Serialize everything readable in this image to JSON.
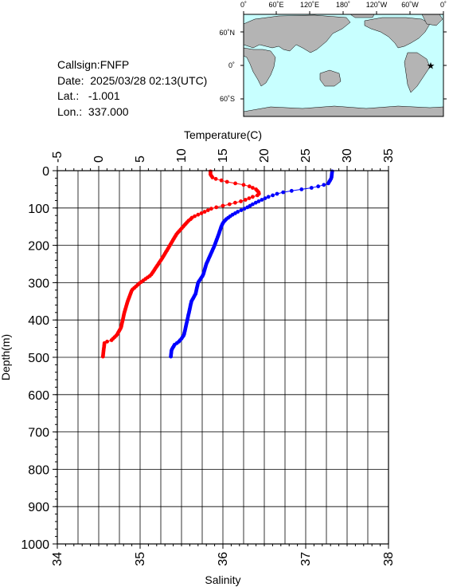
{
  "station": {
    "callsign_label": "Callsign:",
    "callsign": "FNFP",
    "date_label": "Date:",
    "date": "2025/03/28 02:13(UTC)",
    "lat_label": "Lat.:",
    "lat": "-1.001",
    "lon_label": "Lon.:",
    "lon": "337.000"
  },
  "map": {
    "top_labels": [
      "0˚",
      "60˚E",
      "120˚E",
      "180˚",
      "120˚W",
      "60˚W",
      "0˚"
    ],
    "lat_labels": [
      "60˚N",
      "0˚",
      "60˚S"
    ],
    "ocean_color": "#c8ffff",
    "land_color": "#b4b4b4",
    "marker_color": "#ff0000",
    "marker": {
      "lon": 337.0,
      "lat": -1.001
    }
  },
  "chart_data": {
    "type": "line",
    "xlabel_top": "Temperature(C)",
    "xlabel_bottom": "Salinity",
    "ylabel": "Depth(m)",
    "temp_ticks": [
      "-5",
      "0",
      "5",
      "10",
      "15",
      "20",
      "25",
      "30",
      "35"
    ],
    "sal_ticks": [
      "34",
      "35",
      "36",
      "37",
      "38"
    ],
    "depth_ticks": [
      "0",
      "100",
      "200",
      "300",
      "400",
      "500",
      "600",
      "700",
      "800",
      "900",
      "1000"
    ],
    "temp_range": [
      -5,
      35
    ],
    "sal_range": [
      34,
      38
    ],
    "depth_range": [
      0,
      1000
    ],
    "grid": true,
    "series": [
      {
        "axis": "temperature",
        "color": "#0000ff",
        "profile": [
          [
            2,
            28.2
          ],
          [
            20,
            28.1
          ],
          [
            35,
            27.7
          ],
          [
            45,
            26.0
          ],
          [
            50,
            24.5
          ],
          [
            55,
            23.0
          ],
          [
            60,
            21.8
          ],
          [
            70,
            20.5
          ],
          [
            80,
            19.5
          ],
          [
            90,
            18.6
          ],
          [
            100,
            17.8
          ],
          [
            110,
            16.8
          ],
          [
            120,
            16.0
          ],
          [
            130,
            15.4
          ],
          [
            140,
            15.0
          ],
          [
            150,
            14.8
          ],
          [
            170,
            14.5
          ],
          [
            200,
            14.0
          ],
          [
            230,
            13.4
          ],
          [
            250,
            13.0
          ],
          [
            280,
            12.6
          ],
          [
            300,
            12.0
          ],
          [
            330,
            11.7
          ],
          [
            350,
            11.2
          ],
          [
            380,
            10.9
          ],
          [
            400,
            10.7
          ],
          [
            420,
            10.5
          ],
          [
            440,
            10.3
          ],
          [
            450,
            10.0
          ],
          [
            460,
            9.6
          ],
          [
            465,
            9.2
          ],
          [
            480,
            8.8
          ],
          [
            500,
            8.7
          ]
        ]
      },
      {
        "axis": "salinity",
        "color": "#ff0000",
        "profile": [
          [
            2,
            35.85
          ],
          [
            10,
            35.85
          ],
          [
            20,
            35.88
          ],
          [
            30,
            36.05
          ],
          [
            40,
            36.3
          ],
          [
            50,
            36.4
          ],
          [
            60,
            36.44
          ],
          [
            65,
            36.43
          ],
          [
            70,
            36.36
          ],
          [
            80,
            36.25
          ],
          [
            90,
            36.08
          ],
          [
            100,
            35.88
          ],
          [
            110,
            35.78
          ],
          [
            120,
            35.68
          ],
          [
            125,
            35.63
          ],
          [
            130,
            35.61
          ],
          [
            135,
            35.58
          ],
          [
            150,
            35.52
          ],
          [
            170,
            35.44
          ],
          [
            200,
            35.36
          ],
          [
            230,
            35.28
          ],
          [
            250,
            35.22
          ],
          [
            280,
            35.13
          ],
          [
            300,
            35.0
          ],
          [
            320,
            34.9
          ],
          [
            350,
            34.85
          ],
          [
            380,
            34.81
          ],
          [
            400,
            34.79
          ],
          [
            420,
            34.77
          ],
          [
            440,
            34.72
          ],
          [
            455,
            34.65
          ],
          [
            460,
            34.57
          ],
          [
            480,
            34.56
          ],
          [
            500,
            34.55
          ]
        ]
      }
    ]
  }
}
